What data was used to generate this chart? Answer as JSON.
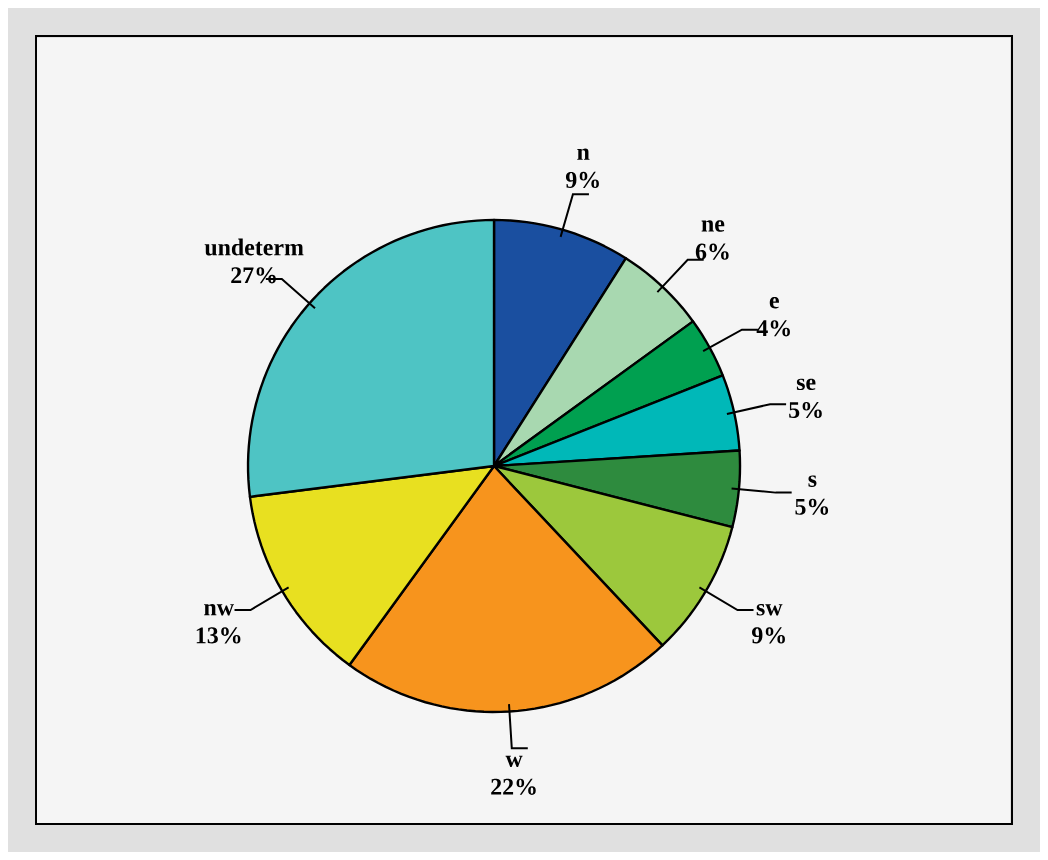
{
  "chart_data": {
    "type": "pie",
    "categories": [
      "n",
      "ne",
      "e",
      "se",
      "s",
      "sw",
      "w",
      "nw",
      "undeterm"
    ],
    "values": [
      9,
      6,
      4,
      5,
      5,
      9,
      22,
      13,
      27
    ],
    "value_labels": [
      "9%",
      "6%",
      "4%",
      "5%",
      "5%",
      "9%",
      "22%",
      "13%",
      "27%"
    ],
    "colors": [
      "#1a4fa0",
      "#a8d8b0",
      "#00a050",
      "#00b8b8",
      "#2e8b3e",
      "#9cc83c",
      "#f7941d",
      "#e8e020",
      "#4ec4c4"
    ]
  }
}
